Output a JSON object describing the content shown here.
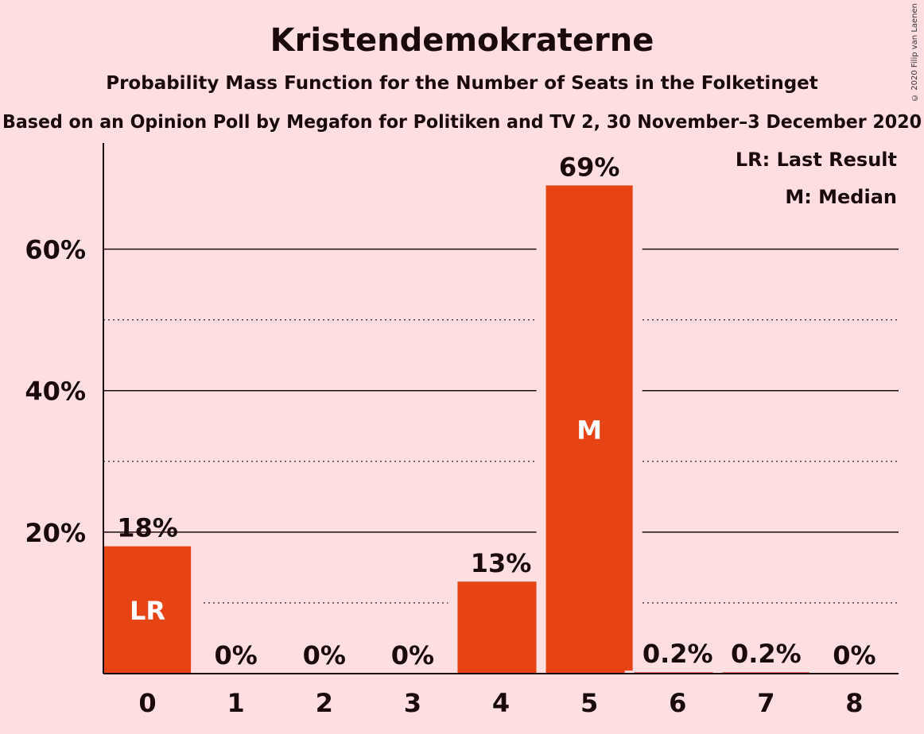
{
  "chart_data": {
    "type": "bar",
    "title": "Kristendemokraterne",
    "subtitle": "Probability Mass Function for the Number of Seats in the Folketinget",
    "subtitle2": "Based on an Opinion Poll by Megafon for Politiken and TV 2, 30 November–3 December 2020",
    "categories": [
      "0",
      "1",
      "2",
      "3",
      "4",
      "5",
      "6",
      "7",
      "8"
    ],
    "values": [
      18,
      0,
      0,
      0,
      13,
      69,
      0.2,
      0.2,
      0
    ],
    "value_labels": [
      "18%",
      "0%",
      "0%",
      "0%",
      "13%",
      "69%",
      "0.2%",
      "0.2%",
      "0%"
    ],
    "bar_markers": [
      {
        "category": "0",
        "text": "LR"
      },
      {
        "category": "5",
        "text": "M"
      }
    ],
    "ylim": [
      0,
      75
    ],
    "yticks": [
      {
        "value": 20,
        "label": "20%"
      },
      {
        "value": 40,
        "label": "40%"
      },
      {
        "value": 60,
        "label": "60%"
      }
    ],
    "minor_gridlines": [
      10,
      30,
      50
    ],
    "legend": [
      "LR: Last Result",
      "M: Median"
    ],
    "legend_position": "top-right",
    "bar_color": "#E64415",
    "background_color": "#FFDEE2"
  },
  "copyright": "© 2020 Filip van Laenen"
}
